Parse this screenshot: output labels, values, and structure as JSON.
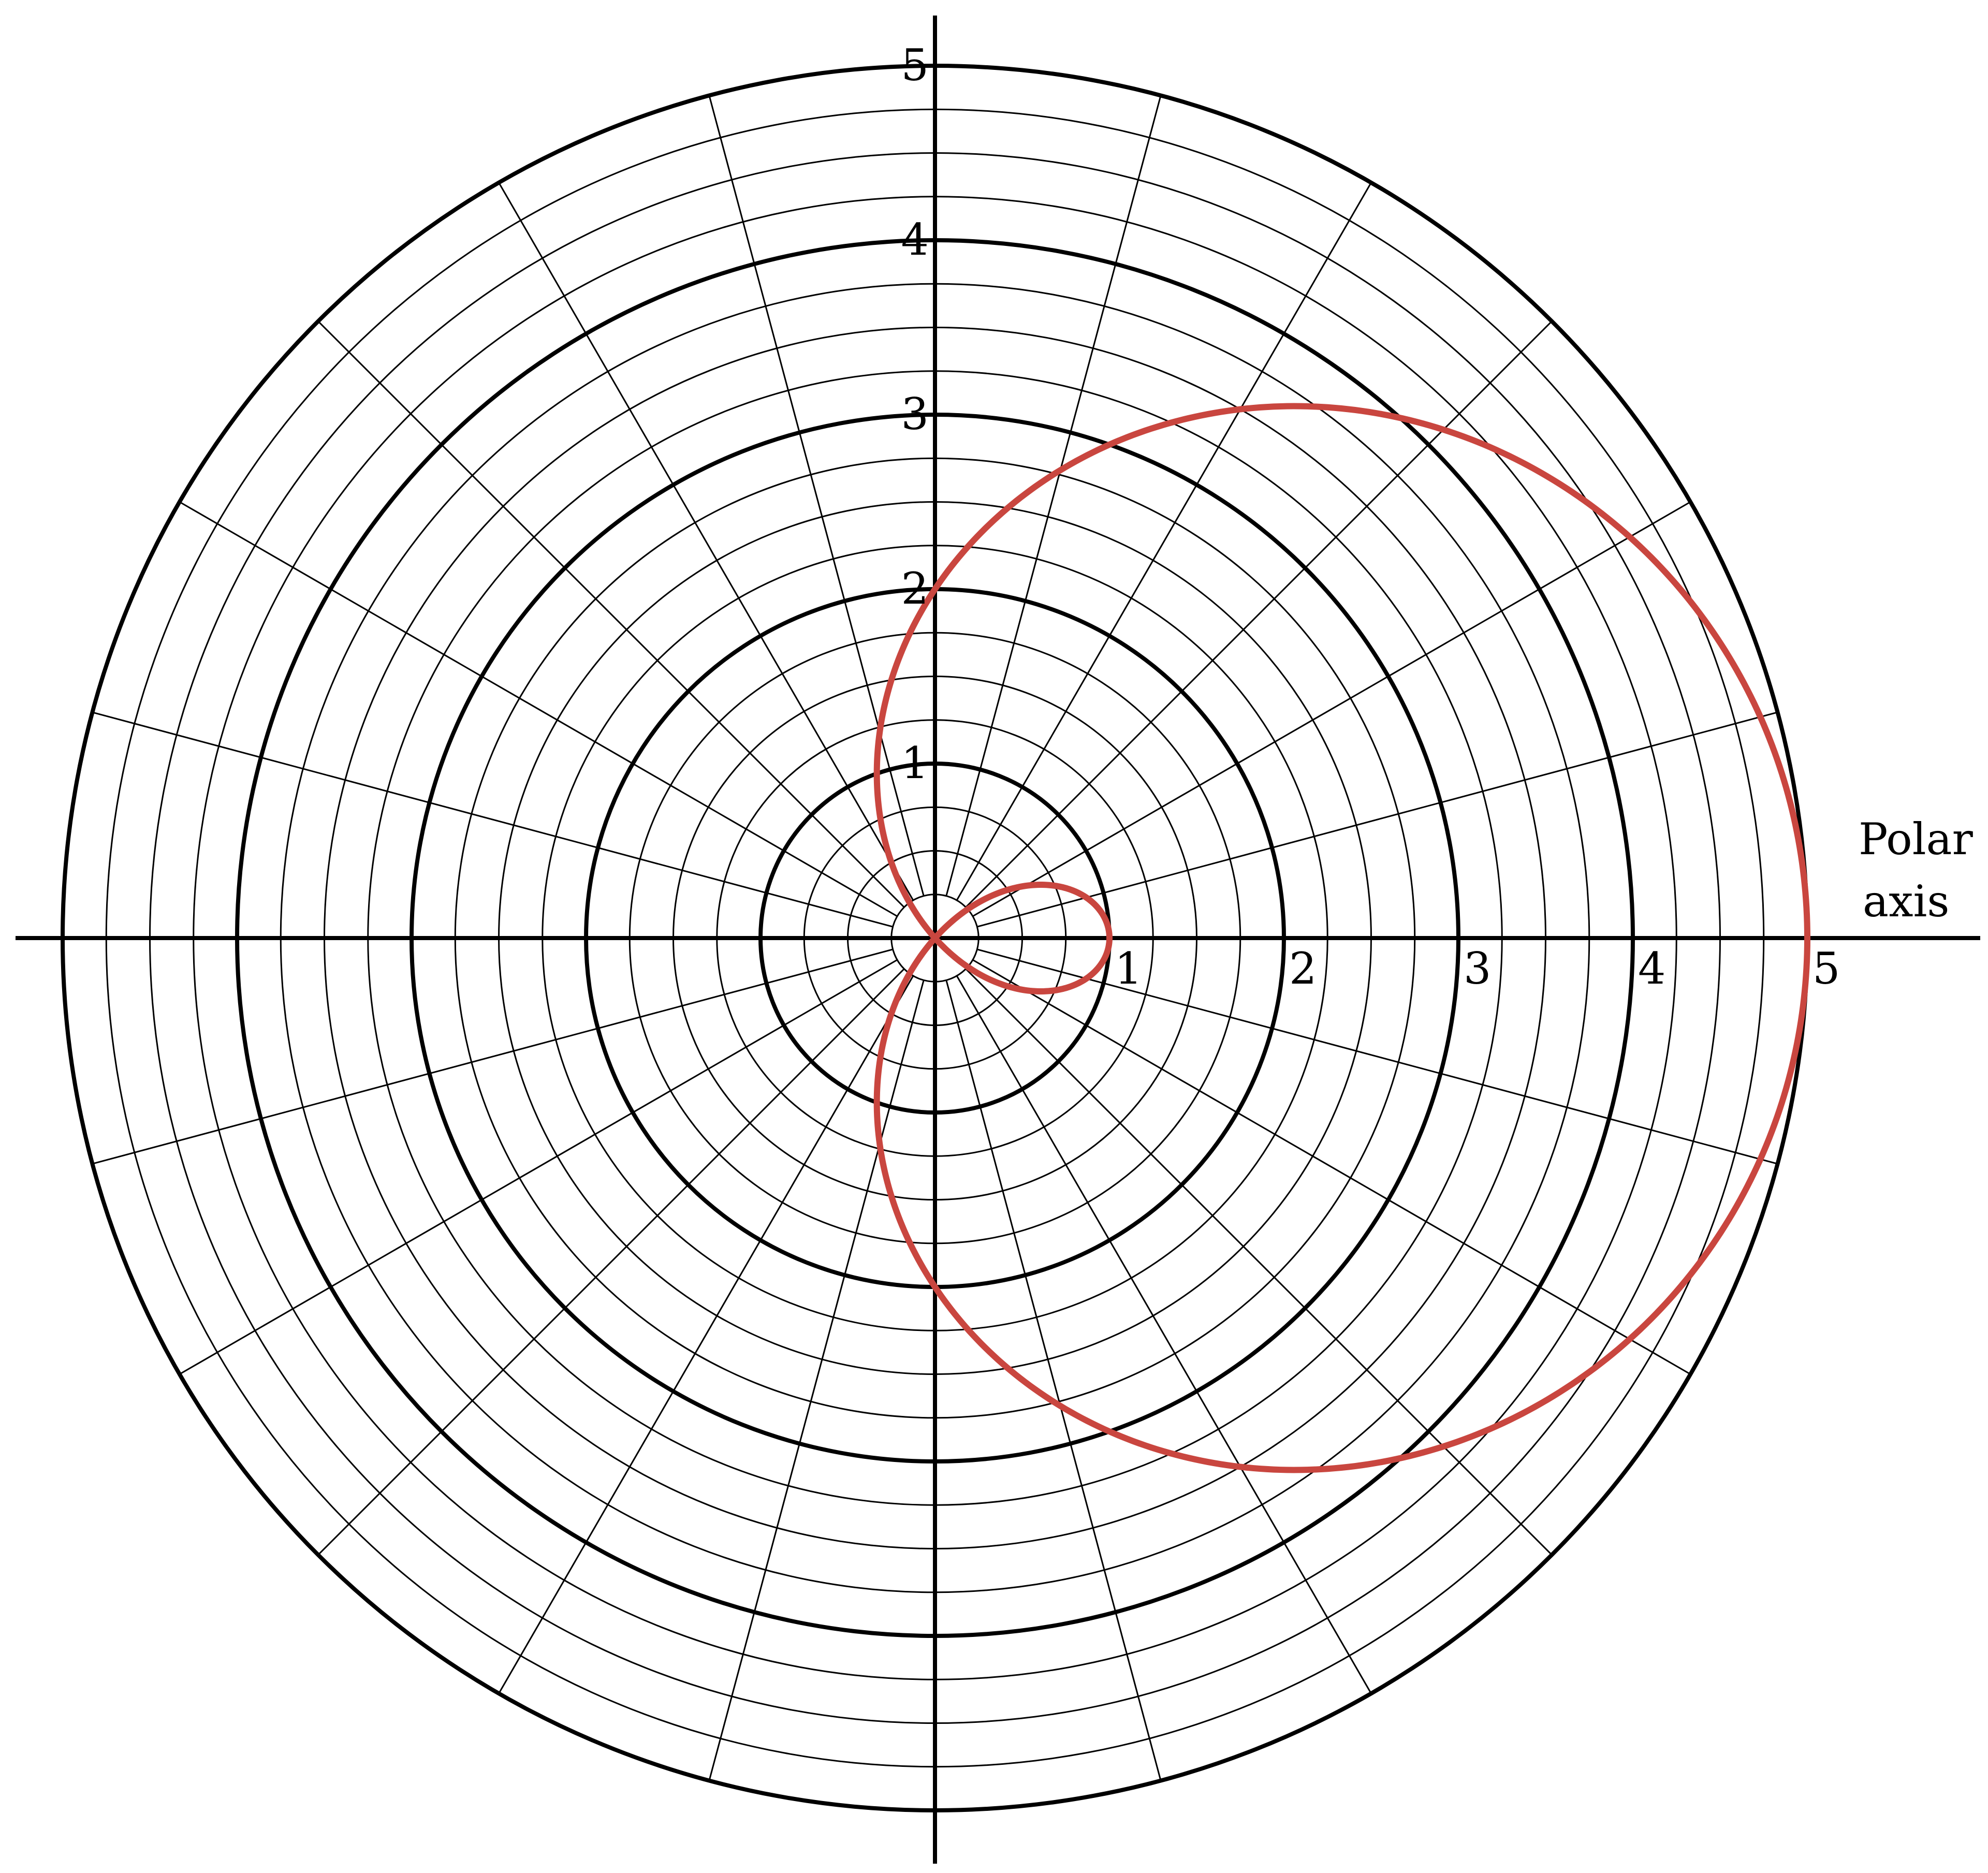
{
  "chart_data": {
    "type": "polar",
    "axis_label": "Polar axis",
    "axis_label_lines": [
      "Polar",
      "axis"
    ],
    "r_range": [
      0,
      5
    ],
    "r_major_ticks": [
      1,
      2,
      3,
      4,
      5
    ],
    "r_minor_step": 0.25,
    "horizontal_tick_labels": [
      "1",
      "2",
      "3",
      "4",
      "5"
    ],
    "vertical_tick_labels": [
      "1",
      "2",
      "3",
      "4",
      "5"
    ],
    "angular_spokes_deg": 15,
    "grid": true,
    "series": [
      {
        "type": "limacon",
        "r_formula": "r = 2 + 3cos(theta)",
        "a": 2,
        "b": 3,
        "theta_range_deg": [
          0,
          360
        ],
        "color": "#c9463f"
      }
    ]
  }
}
